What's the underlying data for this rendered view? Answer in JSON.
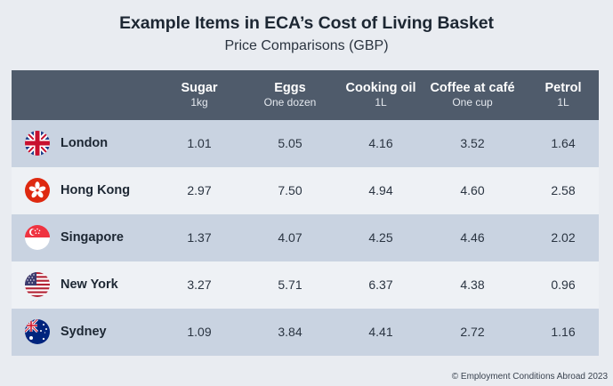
{
  "title": "Example Items in ECA’s Cost of Living Basket",
  "subtitle": "Price Comparisons (GBP)",
  "columns": [
    {
      "name": "Sugar",
      "unit": "1kg"
    },
    {
      "name": "Eggs",
      "unit": "One dozen"
    },
    {
      "name": "Cooking oil",
      "unit": "1L"
    },
    {
      "name": "Coffee at café",
      "unit": "One cup"
    },
    {
      "name": "Petrol",
      "unit": "1L"
    }
  ],
  "rows": [
    {
      "city": "London",
      "flag": "uk-flag-icon",
      "values": [
        "1.01",
        "5.05",
        "4.16",
        "3.52",
        "1.64"
      ]
    },
    {
      "city": "Hong Kong",
      "flag": "hong-kong-flag-icon",
      "values": [
        "2.97",
        "7.50",
        "4.94",
        "4.60",
        "2.58"
      ]
    },
    {
      "city": "Singapore",
      "flag": "singapore-flag-icon",
      "values": [
        "1.37",
        "4.07",
        "4.25",
        "4.46",
        "2.02"
      ]
    },
    {
      "city": "New York",
      "flag": "us-flag-icon",
      "values": [
        "3.27",
        "5.71",
        "6.37",
        "4.38",
        "0.96"
      ]
    },
    {
      "city": "Sydney",
      "flag": "australia-flag-icon",
      "values": [
        "1.09",
        "3.84",
        "4.41",
        "2.72",
        "1.16"
      ]
    }
  ],
  "copyright": "© Employment Conditions Abroad 2023",
  "colors": {
    "header_bg": "#4f5b6b",
    "row_alt": "#c9d3e1",
    "row_plain": "#eef1f5",
    "page_bg": "#e9ecf1"
  }
}
